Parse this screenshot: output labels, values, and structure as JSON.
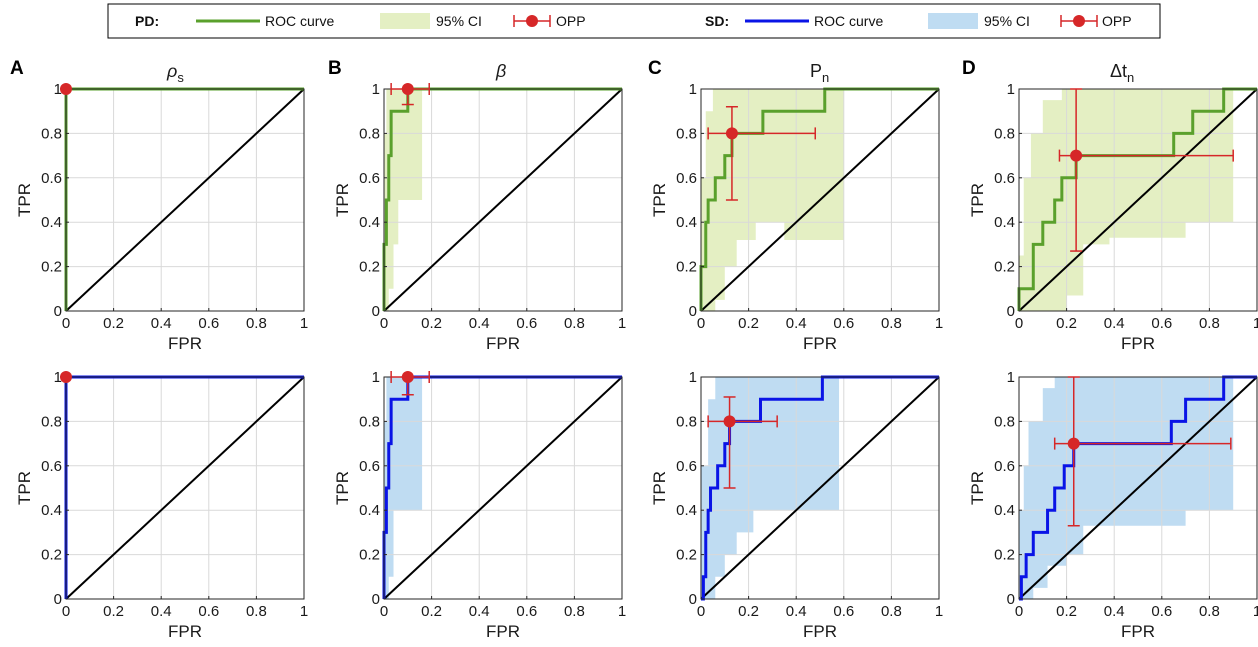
{
  "legend": {
    "groups": [
      {
        "label": "PD:",
        "curve_label": "ROC curve",
        "ci_label": "95% CI",
        "opp_label": "OPP",
        "line_color": "#5aa02c",
        "ci_color": "#e4efc3"
      },
      {
        "label": "SD:",
        "curve_label": "ROC curve",
        "ci_label": "95% CI",
        "opp_label": "OPP",
        "line_color": "#0a14e6",
        "ci_color": "#bfdcf2"
      }
    ],
    "opp_color": "#d62728"
  },
  "axis_labels": {
    "x": "FPR",
    "y": "TPR"
  },
  "ticks": {
    "x": [
      "0",
      "0.2",
      "0.4",
      "0.6",
      "0.8",
      "1"
    ],
    "y": [
      "0",
      "0.2",
      "0.4",
      "0.6",
      "0.8",
      "1"
    ]
  },
  "column_titles": [
    {
      "letter": "A",
      "title_main": "ρ",
      "title_sub": "s",
      "title_style": "italic"
    },
    {
      "letter": "B",
      "title_main": "β",
      "title_sub": "",
      "title_style": "italic"
    },
    {
      "letter": "C",
      "title_main": "P",
      "title_sub": "n",
      "title_style": "normal"
    },
    {
      "letter": "D",
      "title_main": "Δt",
      "title_sub": "n",
      "title_style": "normal"
    }
  ],
  "chart_data": [
    {
      "type": "line",
      "group": "PD",
      "column": "A",
      "xlim": [
        0,
        1
      ],
      "ylim": [
        0,
        1
      ],
      "grid": true,
      "roc": [
        [
          0,
          0
        ],
        [
          0,
          1
        ],
        [
          1,
          1
        ]
      ],
      "diagonal": true,
      "ci_lower": [
        [
          0,
          0
        ],
        [
          0,
          1
        ],
        [
          1,
          1
        ]
      ],
      "ci_upper": [
        [
          0,
          0
        ],
        [
          0,
          1
        ],
        [
          1,
          1
        ]
      ],
      "opp": {
        "x": 0,
        "y": 1,
        "x_err": [
          0,
          0
        ],
        "y_err": [
          1,
          1
        ]
      }
    },
    {
      "type": "line",
      "group": "PD",
      "column": "B",
      "xlim": [
        0,
        1
      ],
      "ylim": [
        0,
        1
      ],
      "grid": true,
      "roc": [
        [
          0,
          0
        ],
        [
          0,
          0.3
        ],
        [
          0.01,
          0.3
        ],
        [
          0.01,
          0.5
        ],
        [
          0.02,
          0.5
        ],
        [
          0.02,
          0.7
        ],
        [
          0.03,
          0.7
        ],
        [
          0.03,
          0.9
        ],
        [
          0.1,
          0.9
        ],
        [
          0.1,
          1
        ],
        [
          1,
          1
        ]
      ],
      "diagonal": true,
      "ci_lower": [
        [
          0,
          0
        ],
        [
          0.02,
          0
        ],
        [
          0.02,
          0.1
        ],
        [
          0.04,
          0.1
        ],
        [
          0.04,
          0.3
        ],
        [
          0.06,
          0.3
        ],
        [
          0.06,
          0.5
        ],
        [
          0.16,
          0.5
        ],
        [
          0.16,
          1
        ],
        [
          1,
          1
        ]
      ],
      "ci_upper": [
        [
          0,
          0
        ],
        [
          0,
          0.8
        ],
        [
          0.01,
          0.8
        ],
        [
          0.01,
          1
        ],
        [
          1,
          1
        ]
      ],
      "opp": {
        "x": 0.1,
        "y": 1,
        "x_err": [
          0.03,
          0.19
        ],
        "y_err": [
          0.93,
          1
        ]
      }
    },
    {
      "type": "line",
      "group": "PD",
      "column": "C",
      "xlim": [
        0,
        1
      ],
      "ylim": [
        0,
        1
      ],
      "grid": true,
      "roc": [
        [
          0,
          0
        ],
        [
          0,
          0.2
        ],
        [
          0.02,
          0.2
        ],
        [
          0.02,
          0.4
        ],
        [
          0.03,
          0.4
        ],
        [
          0.03,
          0.5
        ],
        [
          0.06,
          0.5
        ],
        [
          0.06,
          0.6
        ],
        [
          0.1,
          0.6
        ],
        [
          0.1,
          0.7
        ],
        [
          0.13,
          0.7
        ],
        [
          0.13,
          0.8
        ],
        [
          0.26,
          0.8
        ],
        [
          0.26,
          0.9
        ],
        [
          0.52,
          0.9
        ],
        [
          0.52,
          1
        ],
        [
          1,
          1
        ]
      ],
      "diagonal": true,
      "ci_lower": [
        [
          0,
          0
        ],
        [
          0.06,
          0
        ],
        [
          0.06,
          0.05
        ],
        [
          0.1,
          0.05
        ],
        [
          0.1,
          0.2
        ],
        [
          0.15,
          0.2
        ],
        [
          0.15,
          0.32
        ],
        [
          0.23,
          0.32
        ],
        [
          0.23,
          0.4
        ],
        [
          0.35,
          0.4
        ],
        [
          0.35,
          0.32
        ],
        [
          0.6,
          0.32
        ],
        [
          0.6,
          1
        ],
        [
          1,
          1
        ]
      ],
      "ci_upper": [
        [
          0,
          0
        ],
        [
          0,
          0.6
        ],
        [
          0.02,
          0.6
        ],
        [
          0.02,
          0.9
        ],
        [
          0.05,
          0.9
        ],
        [
          0.05,
          1
        ],
        [
          1,
          1
        ]
      ],
      "opp": {
        "x": 0.13,
        "y": 0.8,
        "x_err": [
          0.03,
          0.48
        ],
        "y_err": [
          0.5,
          0.92
        ]
      }
    },
    {
      "type": "line",
      "group": "PD",
      "column": "D",
      "xlim": [
        0,
        1
      ],
      "ylim": [
        0,
        1
      ],
      "grid": true,
      "roc": [
        [
          0,
          0
        ],
        [
          0,
          0.1
        ],
        [
          0.06,
          0.1
        ],
        [
          0.06,
          0.3
        ],
        [
          0.1,
          0.3
        ],
        [
          0.1,
          0.4
        ],
        [
          0.15,
          0.4
        ],
        [
          0.15,
          0.5
        ],
        [
          0.18,
          0.5
        ],
        [
          0.18,
          0.6
        ],
        [
          0.24,
          0.6
        ],
        [
          0.24,
          0.7
        ],
        [
          0.65,
          0.7
        ],
        [
          0.65,
          0.8
        ],
        [
          0.73,
          0.8
        ],
        [
          0.73,
          0.9
        ],
        [
          0.86,
          0.9
        ],
        [
          0.86,
          1
        ],
        [
          1,
          1
        ]
      ],
      "diagonal": true,
      "ci_lower": [
        [
          0,
          0
        ],
        [
          0.2,
          0
        ],
        [
          0.2,
          0.07
        ],
        [
          0.27,
          0.07
        ],
        [
          0.27,
          0.3
        ],
        [
          0.38,
          0.3
        ],
        [
          0.38,
          0.33
        ],
        [
          0.7,
          0.33
        ],
        [
          0.7,
          0.4
        ],
        [
          0.9,
          0.4
        ],
        [
          0.9,
          1
        ],
        [
          1,
          1
        ]
      ],
      "ci_upper": [
        [
          0,
          0
        ],
        [
          0,
          0.25
        ],
        [
          0.02,
          0.25
        ],
        [
          0.02,
          0.6
        ],
        [
          0.05,
          0.6
        ],
        [
          0.05,
          0.8
        ],
        [
          0.1,
          0.8
        ],
        [
          0.1,
          0.95
        ],
        [
          0.18,
          0.95
        ],
        [
          0.18,
          1
        ],
        [
          1,
          1
        ]
      ],
      "opp": {
        "x": 0.24,
        "y": 0.7,
        "x_err": [
          0.17,
          0.9
        ],
        "y_err": [
          0.27,
          1
        ]
      }
    },
    {
      "type": "line",
      "group": "SD",
      "column": "A",
      "xlim": [
        0,
        1
      ],
      "ylim": [
        0,
        1
      ],
      "grid": true,
      "roc": [
        [
          0,
          0
        ],
        [
          0,
          1
        ],
        [
          1,
          1
        ]
      ],
      "diagonal": true,
      "ci_lower": [
        [
          0,
          0
        ],
        [
          0,
          1
        ],
        [
          1,
          1
        ]
      ],
      "ci_upper": [
        [
          0,
          0
        ],
        [
          0,
          1
        ],
        [
          1,
          1
        ]
      ],
      "opp": {
        "x": 0,
        "y": 1,
        "x_err": [
          0,
          0
        ],
        "y_err": [
          1,
          1
        ]
      }
    },
    {
      "type": "line",
      "group": "SD",
      "column": "B",
      "xlim": [
        0,
        1
      ],
      "ylim": [
        0,
        1
      ],
      "grid": true,
      "roc": [
        [
          0,
          0
        ],
        [
          0,
          0.3
        ],
        [
          0.01,
          0.3
        ],
        [
          0.01,
          0.5
        ],
        [
          0.02,
          0.5
        ],
        [
          0.02,
          0.7
        ],
        [
          0.03,
          0.7
        ],
        [
          0.03,
          0.9
        ],
        [
          0.1,
          0.9
        ],
        [
          0.1,
          1
        ],
        [
          1,
          1
        ]
      ],
      "diagonal": true,
      "ci_lower": [
        [
          0,
          0
        ],
        [
          0.02,
          0
        ],
        [
          0.02,
          0.1
        ],
        [
          0.04,
          0.1
        ],
        [
          0.04,
          0.4
        ],
        [
          0.16,
          0.4
        ],
        [
          0.16,
          1
        ],
        [
          1,
          1
        ]
      ],
      "ci_upper": [
        [
          0,
          0
        ],
        [
          0,
          0.8
        ],
        [
          0.01,
          0.8
        ],
        [
          0.01,
          1
        ],
        [
          1,
          1
        ]
      ],
      "opp": {
        "x": 0.1,
        "y": 1,
        "x_err": [
          0.03,
          0.19
        ],
        "y_err": [
          0.92,
          1
        ]
      }
    },
    {
      "type": "line",
      "group": "SD",
      "column": "C",
      "xlim": [
        0,
        1
      ],
      "ylim": [
        0,
        1
      ],
      "grid": true,
      "roc": [
        [
          0,
          0
        ],
        [
          0.01,
          0
        ],
        [
          0.01,
          0.1
        ],
        [
          0.02,
          0.1
        ],
        [
          0.02,
          0.3
        ],
        [
          0.03,
          0.3
        ],
        [
          0.03,
          0.4
        ],
        [
          0.04,
          0.4
        ],
        [
          0.04,
          0.5
        ],
        [
          0.07,
          0.5
        ],
        [
          0.07,
          0.6
        ],
        [
          0.1,
          0.6
        ],
        [
          0.1,
          0.7
        ],
        [
          0.12,
          0.7
        ],
        [
          0.12,
          0.8
        ],
        [
          0.15,
          0.8
        ],
        [
          0.15,
          0.8
        ],
        [
          0.25,
          0.8
        ],
        [
          0.25,
          0.9
        ],
        [
          0.51,
          0.9
        ],
        [
          0.51,
          1
        ],
        [
          1,
          1
        ]
      ],
      "diagonal": true,
      "ci_lower": [
        [
          0,
          0
        ],
        [
          0.06,
          0
        ],
        [
          0.06,
          0.1
        ],
        [
          0.1,
          0.1
        ],
        [
          0.1,
          0.2
        ],
        [
          0.15,
          0.2
        ],
        [
          0.15,
          0.3
        ],
        [
          0.22,
          0.3
        ],
        [
          0.22,
          0.4
        ],
        [
          0.3,
          0.4
        ],
        [
          0.3,
          0.4
        ],
        [
          0.58,
          0.4
        ],
        [
          0.58,
          1
        ],
        [
          1,
          1
        ]
      ],
      "ci_upper": [
        [
          0,
          0
        ],
        [
          0,
          0.6
        ],
        [
          0.03,
          0.6
        ],
        [
          0.03,
          0.9
        ],
        [
          0.06,
          0.9
        ],
        [
          0.06,
          1
        ],
        [
          1,
          1
        ]
      ],
      "opp": {
        "x": 0.12,
        "y": 0.8,
        "x_err": [
          0.03,
          0.32
        ],
        "y_err": [
          0.5,
          0.91
        ]
      }
    },
    {
      "type": "line",
      "group": "SD",
      "column": "D",
      "xlim": [
        0,
        1
      ],
      "ylim": [
        0,
        1
      ],
      "grid": true,
      "roc": [
        [
          0,
          0
        ],
        [
          0.01,
          0
        ],
        [
          0.01,
          0.1
        ],
        [
          0.03,
          0.1
        ],
        [
          0.03,
          0.2
        ],
        [
          0.06,
          0.2
        ],
        [
          0.06,
          0.3
        ],
        [
          0.12,
          0.3
        ],
        [
          0.12,
          0.4
        ],
        [
          0.15,
          0.4
        ],
        [
          0.15,
          0.5
        ],
        [
          0.19,
          0.5
        ],
        [
          0.19,
          0.6
        ],
        [
          0.23,
          0.6
        ],
        [
          0.23,
          0.7
        ],
        [
          0.64,
          0.7
        ],
        [
          0.64,
          0.8
        ],
        [
          0.7,
          0.8
        ],
        [
          0.7,
          0.9
        ],
        [
          0.86,
          0.9
        ],
        [
          0.86,
          1
        ],
        [
          1,
          1
        ]
      ],
      "diagonal": true,
      "ci_lower": [
        [
          0,
          0
        ],
        [
          0.06,
          0
        ],
        [
          0.06,
          0.05
        ],
        [
          0.12,
          0.05
        ],
        [
          0.12,
          0.15
        ],
        [
          0.2,
          0.15
        ],
        [
          0.2,
          0.2
        ],
        [
          0.27,
          0.2
        ],
        [
          0.27,
          0.33
        ],
        [
          0.7,
          0.33
        ],
        [
          0.7,
          0.4
        ],
        [
          0.9,
          0.4
        ],
        [
          0.9,
          1
        ],
        [
          1,
          1
        ]
      ],
      "ci_upper": [
        [
          0,
          0
        ],
        [
          0,
          0.4
        ],
        [
          0.02,
          0.4
        ],
        [
          0.02,
          0.6
        ],
        [
          0.04,
          0.6
        ],
        [
          0.04,
          0.8
        ],
        [
          0.1,
          0.8
        ],
        [
          0.1,
          0.95
        ],
        [
          0.15,
          0.95
        ],
        [
          0.15,
          1
        ],
        [
          1,
          1
        ]
      ],
      "opp": {
        "x": 0.23,
        "y": 0.7,
        "x_err": [
          0.15,
          0.89
        ],
        "y_err": [
          0.33,
          1
        ]
      }
    }
  ]
}
